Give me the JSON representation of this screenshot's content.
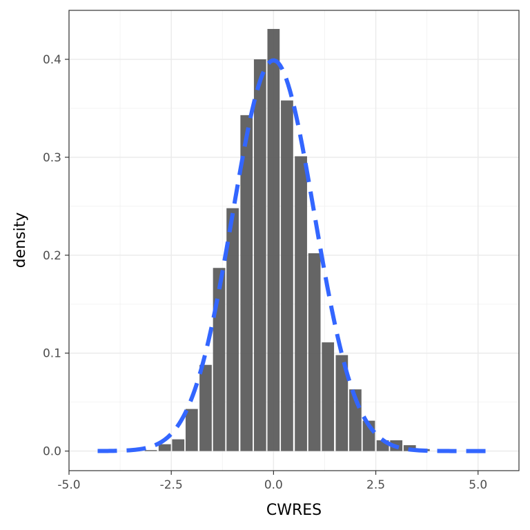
{
  "chart_data": {
    "type": "bar",
    "xlabel": "CWRES",
    "ylabel": "density",
    "xlim": [
      -5.0,
      6.0
    ],
    "ylim": [
      -0.02,
      0.45
    ],
    "x_ticks": [
      -5.0,
      -2.5,
      0.0,
      2.5,
      5.0
    ],
    "x_tick_labels": [
      "-5.0",
      "-2.5",
      "0.0",
      "2.5",
      "5.0"
    ],
    "y_ticks": [
      0.0,
      0.1,
      0.2,
      0.3,
      0.4
    ],
    "y_tick_labels": [
      "0.0",
      "0.1",
      "0.2",
      "0.3",
      "0.4"
    ],
    "grid": true,
    "legend": "none",
    "histogram": {
      "bin_width": 0.333,
      "bin_centers": [
        -3.0,
        -2.66,
        -2.33,
        -2.0,
        -1.66,
        -1.33,
        -1.0,
        -0.66,
        -0.33,
        0.0,
        0.33,
        0.67,
        1.0,
        1.33,
        1.67,
        2.0,
        2.33,
        2.67,
        3.0,
        3.33,
        3.67
      ],
      "density": [
        0.001,
        0.007,
        0.012,
        0.043,
        0.088,
        0.187,
        0.248,
        0.343,
        0.4,
        0.431,
        0.358,
        0.301,
        0.202,
        0.111,
        0.098,
        0.063,
        0.031,
        0.011,
        0.011,
        0.006,
        0.002
      ],
      "color": "#595959"
    },
    "curve": {
      "type": "normal-density",
      "mean": 0,
      "sd": 1,
      "x_range": [
        -4.3,
        5.4
      ],
      "color": "#3366FF",
      "linestyle": "dashed"
    }
  }
}
